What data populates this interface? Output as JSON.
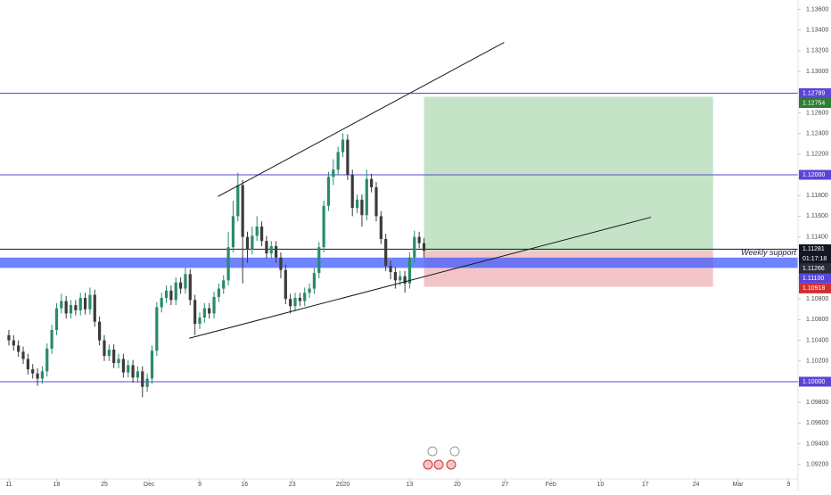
{
  "chart_data": {
    "type": "candlestick",
    "up_color": "#2a8a6e",
    "down_color": "#3b3b3b",
    "grid": false,
    "x": [
      0,
      0.5,
      1,
      1.5,
      2,
      2.5,
      3,
      3.5,
      4,
      4.5,
      5,
      5.5,
      6,
      6.5,
      7,
      7.5,
      8,
      8.5,
      9,
      9.5,
      10,
      10.5,
      11,
      11.5,
      12,
      12.5,
      13,
      13.5,
      14,
      14.5,
      15,
      15.5,
      16,
      16.5,
      17,
      17.5,
      18,
      18.5,
      19,
      19.5,
      20,
      20.5,
      21,
      21.5,
      22,
      22.5,
      23,
      23.5,
      24,
      24.5,
      25,
      25.5,
      26,
      26.5,
      27,
      27.5,
      28,
      28.5,
      29,
      29.5,
      30,
      30.5,
      31,
      31.5,
      32,
      32.5,
      33,
      33.5,
      34,
      34.5,
      35,
      35.5,
      36,
      36.5,
      37,
      37.5,
      38,
      38.5,
      39,
      39.5,
      40,
      40.5,
      41,
      41.5,
      42,
      42.5,
      43,
      43.5
    ],
    "open": [
      1.1045,
      1.104,
      1.1035,
      1.1029,
      1.1022,
      1.1012,
      1.1008,
      1.1003,
      1.101,
      1.1032,
      1.105,
      1.1071,
      1.1078,
      1.1066,
      1.1074,
      1.1069,
      1.1081,
      1.107,
      1.1084,
      1.1058,
      1.104,
      1.1025,
      1.1031,
      1.1018,
      1.1022,
      1.1009,
      1.1016,
      1.1004,
      1.101,
      1.0995,
      1.1003,
      1.103,
      1.1072,
      1.1081,
      1.1088,
      1.1079,
      1.1096,
      1.109,
      1.1104,
      1.1079,
      1.1056,
      1.1062,
      1.1071,
      1.1066,
      1.1082,
      1.109,
      1.1098,
      1.113,
      1.116,
      1.119,
      1.114,
      1.1128,
      1.1141,
      1.115,
      1.1136,
      1.1124,
      1.1131,
      1.112,
      1.1108,
      1.108,
      1.1073,
      1.1081,
      1.1078,
      1.1086,
      1.109,
      1.1105,
      1.113,
      1.117,
      1.1198,
      1.1205,
      1.1222,
      1.1234,
      1.12,
      1.1168,
      1.1176,
      1.1161,
      1.1196,
      1.1188,
      1.116,
      1.1138,
      1.1112,
      1.1106,
      1.1098,
      1.1102,
      1.1095,
      1.112,
      1.114,
      1.1134
    ],
    "high": [
      1.105,
      1.1045,
      1.104,
      1.1034,
      1.1027,
      1.1017,
      1.1013,
      1.1015,
      1.1037,
      1.1055,
      1.1076,
      1.1085,
      1.1083,
      1.1079,
      1.1079,
      1.1086,
      1.1086,
      1.1091,
      1.1089,
      1.1063,
      1.1045,
      1.1036,
      1.1036,
      1.1027,
      1.1027,
      1.1021,
      1.1021,
      1.1015,
      1.1015,
      1.1008,
      1.1035,
      1.1077,
      1.1086,
      1.1093,
      1.1093,
      1.1101,
      1.1101,
      1.111,
      1.1109,
      1.1084,
      1.1067,
      1.1076,
      1.1076,
      1.1087,
      1.1095,
      1.1103,
      1.1145,
      1.1175,
      1.1202,
      1.1195,
      1.1145,
      1.115,
      1.116,
      1.1155,
      1.1141,
      1.1136,
      1.1136,
      1.1125,
      1.1113,
      1.1085,
      1.1086,
      1.1086,
      1.1091,
      1.1095,
      1.111,
      1.1135,
      1.1175,
      1.1203,
      1.1215,
      1.1227,
      1.124,
      1.1239,
      1.1205,
      1.1181,
      1.1181,
      1.1205,
      1.1201,
      1.1193,
      1.1165,
      1.1143,
      1.1117,
      1.1111,
      1.1107,
      1.1107,
      1.1125,
      1.1146,
      1.1145,
      1.1139
    ],
    "low": [
      1.1035,
      1.103,
      1.1024,
      1.1017,
      1.1007,
      1.1003,
      1.0996,
      1.0998,
      1.1005,
      1.1027,
      1.1045,
      1.1066,
      1.1061,
      1.1061,
      1.1064,
      1.1064,
      1.1065,
      1.1065,
      1.1053,
      1.1035,
      1.102,
      1.102,
      1.1013,
      1.1013,
      1.1004,
      1.1004,
      1.0999,
      1.0999,
      1.0985,
      1.099,
      1.0998,
      1.1025,
      1.1067,
      1.1076,
      1.1074,
      1.1074,
      1.1085,
      1.1085,
      1.1074,
      1.1045,
      1.1051,
      1.1057,
      1.1061,
      1.1061,
      1.1077,
      1.1085,
      1.1093,
      1.1125,
      1.1155,
      1.1095,
      1.1115,
      1.1123,
      1.1136,
      1.1131,
      1.1119,
      1.1119,
      1.1115,
      1.11,
      1.1075,
      1.1066,
      1.1068,
      1.1073,
      1.1073,
      1.1081,
      1.1085,
      1.11,
      1.1125,
      1.1165,
      1.119,
      1.12,
      1.1217,
      1.1195,
      1.116,
      1.1163,
      1.115,
      1.1156,
      1.1183,
      1.1155,
      1.1133,
      1.1107,
      1.1099,
      1.109,
      1.1093,
      1.1086,
      1.109,
      1.1115,
      1.1129,
      1.112
    ],
    "close": [
      1.104,
      1.1035,
      1.1029,
      1.1022,
      1.1012,
      1.1008,
      1.1003,
      1.101,
      1.1032,
      1.105,
      1.1071,
      1.1078,
      1.1066,
      1.1074,
      1.1069,
      1.1081,
      1.107,
      1.1084,
      1.1058,
      1.104,
      1.1025,
      1.1031,
      1.1018,
      1.1022,
      1.1009,
      1.1016,
      1.1004,
      1.101,
      1.0995,
      1.1003,
      1.103,
      1.1072,
      1.1081,
      1.1088,
      1.1079,
      1.1096,
      1.109,
      1.1104,
      1.1079,
      1.1056,
      1.1062,
      1.1071,
      1.1066,
      1.1082,
      1.109,
      1.1098,
      1.113,
      1.116,
      1.119,
      1.114,
      1.1128,
      1.1141,
      1.115,
      1.1136,
      1.1124,
      1.1131,
      1.112,
      1.1108,
      1.108,
      1.1073,
      1.1081,
      1.1078,
      1.1086,
      1.109,
      1.1105,
      1.113,
      1.117,
      1.1198,
      1.1205,
      1.1222,
      1.1234,
      1.12,
      1.1168,
      1.1176,
      1.1161,
      1.1196,
      1.1188,
      1.116,
      1.1138,
      1.1112,
      1.1106,
      1.1098,
      1.1102,
      1.1095,
      1.112,
      1.114,
      1.1134,
      1.11266
    ],
    "xlim": [
      -0.93,
      82.7
    ],
    "ylim": [
      1.0906,
      1.1369
    ],
    "xticks": [
      {
        "value": 0,
        "label": "11"
      },
      {
        "value": 5,
        "label": "18"
      },
      {
        "value": 10,
        "label": "25"
      },
      {
        "value": 14.7,
        "label": "Dec"
      },
      {
        "value": 20,
        "label": "9"
      },
      {
        "value": 24.7,
        "label": "16"
      },
      {
        "value": 29.7,
        "label": "23"
      },
      {
        "value": 35,
        "label": "2020"
      },
      {
        "value": 42,
        "label": "13"
      },
      {
        "value": 47,
        "label": "20"
      },
      {
        "value": 52,
        "label": "27"
      },
      {
        "value": 56.8,
        "label": "Feb"
      },
      {
        "value": 62,
        "label": "10"
      },
      {
        "value": 66.7,
        "label": "17"
      },
      {
        "value": 72,
        "label": "24"
      },
      {
        "value": 76.4,
        "label": "Mar"
      },
      {
        "value": 81.7,
        "label": "9"
      }
    ],
    "yticks": [
      {
        "value": 1.136,
        "label": "1.13600"
      },
      {
        "value": 1.134,
        "label": "1.13400"
      },
      {
        "value": 1.132,
        "label": "1.13200"
      },
      {
        "value": 1.13,
        "label": "1.13000"
      },
      {
        "value": 1.128,
        "label": "1.12800"
      },
      {
        "value": 1.126,
        "label": "1.12600"
      },
      {
        "value": 1.124,
        "label": "1.12400"
      },
      {
        "value": 1.122,
        "label": "1.12200"
      },
      {
        "value": 1.12,
        "label": "1.12000"
      },
      {
        "value": 1.118,
        "label": "1.11800"
      },
      {
        "value": 1.116,
        "label": "1.11600"
      },
      {
        "value": 1.114,
        "label": "1.11400"
      },
      {
        "value": 1.112,
        "label": "1.11200"
      },
      {
        "value": 1.11,
        "label": "1.11000"
      },
      {
        "value": 1.108,
        "label": "1.10800"
      },
      {
        "value": 1.106,
        "label": "1.10600"
      },
      {
        "value": 1.104,
        "label": "1.10400"
      },
      {
        "value": 1.102,
        "label": "1.10200"
      },
      {
        "value": 1.1,
        "label": "1.10000"
      },
      {
        "value": 1.098,
        "label": "1.09800"
      },
      {
        "value": 1.096,
        "label": "1.09600"
      },
      {
        "value": 1.094,
        "label": "1.09400"
      },
      {
        "value": 1.092,
        "label": "1.09200"
      }
    ],
    "levels": [
      {
        "value": 1.12789,
        "color": "#5b45d6"
      },
      {
        "value": 1.12,
        "color": "#5b45d6"
      },
      {
        "value": 1.1,
        "color": "#5b45d6"
      },
      {
        "value": 1.11281,
        "color": "#131722"
      }
    ],
    "support_band": {
      "low": 1.111,
      "high": 1.112,
      "color": "#3d5afe",
      "label": "Weekly support"
    },
    "trendlines": [
      {
        "x": [
          21.9,
          51.9
        ],
        "y": [
          1.1179,
          1.1328
        ],
        "color": "#131722"
      },
      {
        "x": [
          18.9,
          67.3
        ],
        "y": [
          1.1042,
          1.1159
        ],
        "color": "#131722"
      }
    ],
    "position": {
      "x_start": 43.5,
      "x_end": 73.8,
      "entry": 1.11266,
      "target": 1.12754,
      "stop": 1.10918,
      "profit_color": "#c5e3c6",
      "loss_color": "#f3c5c9"
    },
    "last_price": {
      "value": 1.11281,
      "label": "1.11281",
      "countdown": "01:17:18",
      "color": "#131722"
    },
    "price_tags": [
      {
        "value": 1.12789,
        "label": "1.12789",
        "color": "#5b45d6"
      },
      {
        "value": 1.12754,
        "label": "1.12754",
        "color": "#2e7d32"
      },
      {
        "value": 1.12,
        "label": "1.12000",
        "color": "#5b45d6"
      },
      {
        "value": 1.11266,
        "label": "1.11266",
        "color": "#2a2e39"
      },
      {
        "value": 1.111,
        "label": "1.11100",
        "color": "#5b45d6"
      },
      {
        "value": 1.10918,
        "label": "1.10918",
        "color": "#d32f2f"
      },
      {
        "value": 1.1,
        "label": "1.10000",
        "color": "#5b45d6"
      }
    ]
  }
}
